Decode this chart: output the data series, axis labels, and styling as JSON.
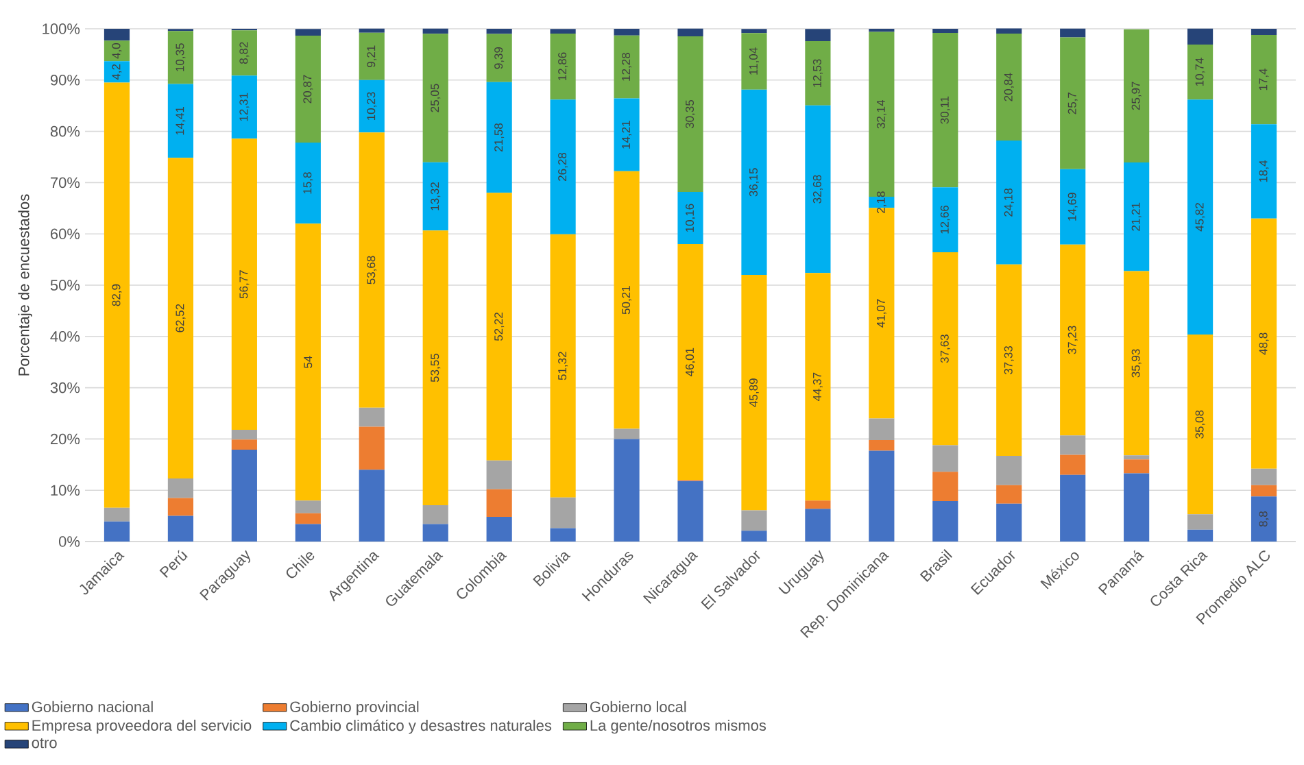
{
  "chart_data": {
    "type": "bar",
    "stacked": true,
    "ylabel": "Porcentaje de encuestados",
    "categories": [
      "Jamaica",
      "Perú",
      "Paraguay",
      "Chile",
      "Argentina",
      "Guatemala",
      "Colombia",
      "Bolivia",
      "Honduras",
      "Nicaragua",
      "El Salvador",
      "Uruguay",
      "Rep. Dominicana",
      "Brasil",
      "Ecuador",
      "México",
      "Panamá",
      "Costa Rica",
      "Promedio ALC"
    ],
    "ylim": [
      0,
      100
    ],
    "yticks": [
      {
        "value": 0,
        "label": "0%"
      },
      {
        "value": 10,
        "label": "10%"
      },
      {
        "value": 20,
        "label": "20%"
      },
      {
        "value": 30,
        "label": "30%"
      },
      {
        "value": 40,
        "label": "40%"
      },
      {
        "value": 50,
        "label": "50%"
      },
      {
        "value": 60,
        "label": "60%"
      },
      {
        "value": 70,
        "label": "70%"
      },
      {
        "value": 80,
        "label": "80%"
      },
      {
        "value": 90,
        "label": "90%"
      },
      {
        "value": 100,
        "label": "100%"
      }
    ],
    "grid": "y",
    "legend": "bottom",
    "series": [
      {
        "name": "Gobierno nacional",
        "color": "#4472c4",
        "values": [
          3.9,
          5.0,
          17.9,
          3.4,
          14.0,
          3.4,
          4.8,
          2.6,
          20.0,
          11.8,
          2.1,
          6.4,
          17.7,
          7.9,
          7.4,
          13.0,
          13.3,
          2.3,
          8.8
        ],
        "value_labels": [
          null,
          null,
          null,
          null,
          null,
          null,
          null,
          null,
          null,
          null,
          null,
          null,
          null,
          null,
          null,
          null,
          null,
          null,
          "8,8"
        ]
      },
      {
        "name": "Gobierno provincial",
        "color": "#ed7d31",
        "values": [
          0,
          3.5,
          2.0,
          2.1,
          8.4,
          0,
          5.4,
          0,
          0,
          0.2,
          0,
          1.6,
          2.1,
          5.7,
          3.6,
          3.9,
          2.7,
          0,
          2.2
        ]
      },
      {
        "name": "Gobierno local",
        "color": "#a5a5a5",
        "values": [
          2.7,
          3.8,
          1.9,
          2.5,
          3.7,
          3.7,
          5.6,
          6.0,
          2.0,
          0,
          4.0,
          0,
          4.2,
          5.2,
          5.7,
          3.8,
          0.8,
          3.0,
          3.2
        ]
      },
      {
        "name": "Empresa proveedora del servicio",
        "color": "#ffc000",
        "values": [
          82.9,
          62.52,
          56.77,
          54,
          53.68,
          53.55,
          52.22,
          51.32,
          50.21,
          46.01,
          45.89,
          44.37,
          41.07,
          37.63,
          37.33,
          37.23,
          35.93,
          35.08,
          48.8
        ],
        "value_labels": [
          "82,9",
          "62,52",
          "56,77",
          "54",
          "53,68",
          "53,55",
          "52,22",
          "51,32",
          "50,21",
          "46,01",
          "45,89",
          "44,37",
          "41,07",
          "37,63",
          "37,33",
          "37,23",
          "35,93",
          "35,08",
          "48,8"
        ]
      },
      {
        "name": "Cambio climático y desastres naturales",
        "color": "#00b0f0",
        "values": [
          4.2,
          14.41,
          12.31,
          15.8,
          10.23,
          13.32,
          21.58,
          26.28,
          14.21,
          10.16,
          36.15,
          32.68,
          2.18,
          12.66,
          24.18,
          14.69,
          21.21,
          45.82,
          18.4
        ],
        "value_labels": [
          "4,2",
          "14,41",
          "12,31",
          "15,8",
          "10,23",
          "13,32",
          "21,58",
          "26,28",
          "14,21",
          "10,16",
          "36,15",
          "32,68",
          "2,18",
          "12,66",
          "24,18",
          "14,69",
          "21,21",
          "45,82",
          "18,4"
        ]
      },
      {
        "name": "La gente/nosotros mismos",
        "color": "#70ad47",
        "values": [
          4.0,
          10.35,
          8.82,
          20.87,
          9.21,
          25.05,
          9.39,
          12.86,
          12.28,
          30.35,
          11.04,
          12.53,
          32.14,
          30.11,
          20.84,
          25.7,
          25.97,
          10.74,
          17.4
        ],
        "value_labels": [
          "4,0",
          "10,35",
          "8,82",
          "20,87",
          "9,21",
          "25,05",
          "9,39",
          "12,86",
          "12,28",
          "30,35",
          "11,04",
          "12,53",
          "32,14",
          "30,11",
          "20,84",
          "25,7",
          "25,97",
          "10,74",
          "17,4"
        ]
      },
      {
        "name": "otro",
        "color": "#264478",
        "values": [
          2.3,
          0.4,
          0.3,
          1.3,
          0.8,
          1.0,
          1.0,
          0.9,
          1.3,
          1.5,
          0.8,
          2.4,
          0.6,
          0.8,
          1.0,
          1.7,
          0,
          3.1,
          1.2
        ]
      }
    ]
  }
}
